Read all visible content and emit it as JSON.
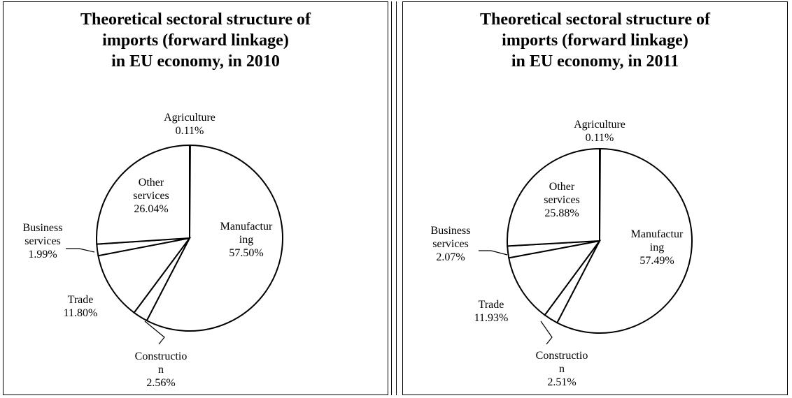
{
  "chart_data": [
    {
      "type": "pie",
      "title_lines": [
        "Theoretical sectoral structure of",
        "imports (forward linkage)",
        "in EU economy, in 2010"
      ],
      "slices": [
        {
          "name": "Agriculture",
          "value": 0.11,
          "label_lines": [
            "Agriculture",
            "0.11%"
          ]
        },
        {
          "name": "Manufacturing",
          "value": 57.5,
          "label_lines": [
            "Manufactur",
            "ing",
            "57.50%"
          ]
        },
        {
          "name": "Construction",
          "value": 2.56,
          "label_lines": [
            "Constructio",
            "n",
            "2.56%"
          ]
        },
        {
          "name": "Trade",
          "value": 11.8,
          "label_lines": [
            "Trade",
            "11.80%"
          ]
        },
        {
          "name": "Business services",
          "value": 1.99,
          "label_lines": [
            "Business",
            "services",
            "1.99%"
          ]
        },
        {
          "name": "Other services",
          "value": 26.04,
          "label_lines": [
            "Other",
            "services",
            "26.04%"
          ]
        }
      ]
    },
    {
      "type": "pie",
      "title_lines": [
        "Theoretical sectoral structure of",
        "imports (forward linkage)",
        "in EU economy, in 2011"
      ],
      "slices": [
        {
          "name": "Agriculture",
          "value": 0.11,
          "label_lines": [
            "Agriculture",
            "0.11%"
          ]
        },
        {
          "name": "Manufacturing",
          "value": 57.49,
          "label_lines": [
            "Manufactur",
            "ing",
            "57.49%"
          ]
        },
        {
          "name": "Construction",
          "value": 2.51,
          "label_lines": [
            "Constructio",
            "n",
            "2.51%"
          ]
        },
        {
          "name": "Trade",
          "value": 11.93,
          "label_lines": [
            "Trade",
            "11.93%"
          ]
        },
        {
          "name": "Business services",
          "value": 2.07,
          "label_lines": [
            "Business",
            "services",
            "2.07%"
          ]
        },
        {
          "name": "Other services",
          "value": 25.88,
          "label_lines": [
            "Other",
            "services",
            "25.88%"
          ]
        }
      ]
    }
  ]
}
